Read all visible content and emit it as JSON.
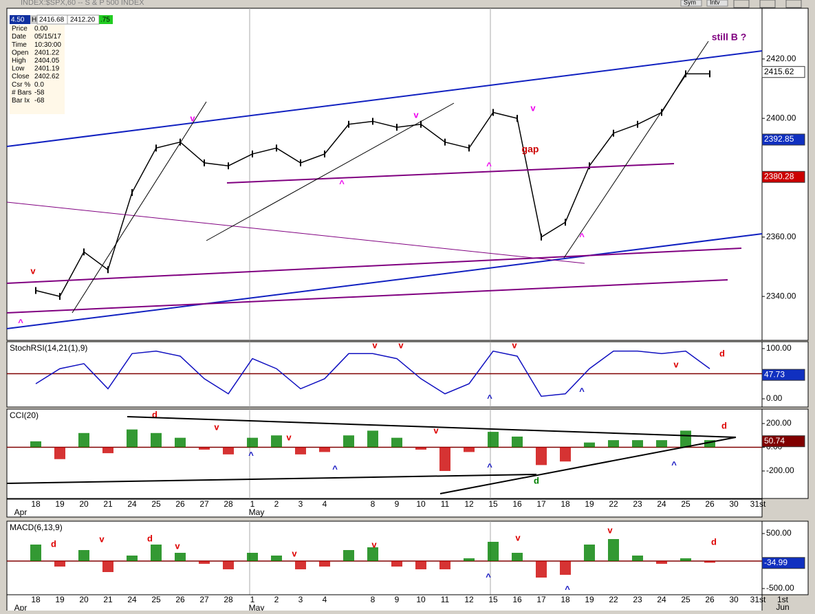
{
  "window": {
    "title": "INDEX:$SPX,60 -- S & P 500 INDEX",
    "buttons": [
      "Sym",
      "Intv"
    ]
  },
  "quote": {
    "fields": [
      "4.50",
      "H",
      "2416.68",
      "2412.20",
      ".75"
    ]
  },
  "info": {
    "rows": [
      [
        "Price",
        "0.00"
      ],
      [
        "Date",
        "05/15/17"
      ],
      [
        "Time",
        "10:30:00"
      ],
      [
        "Open",
        "2401.22"
      ],
      [
        "High",
        "2404.05"
      ],
      [
        "Low",
        "2401.19"
      ],
      [
        "Close",
        "2402.62"
      ],
      [
        "Csr %",
        "0.0"
      ],
      [
        "# Bars",
        "-58"
      ],
      [
        "Bar Ix",
        "-68"
      ]
    ]
  },
  "axis": {
    "categories": [
      "18",
      "19",
      "20",
      "21",
      "24",
      "25",
      "26",
      "27",
      "28",
      "1",
      "2",
      "3",
      "4",
      null,
      "8",
      "9",
      "10",
      "11",
      "12",
      "15",
      "16",
      "17",
      "18",
      "19",
      "22",
      "23",
      "24",
      "25",
      "26",
      "30",
      "31st"
    ],
    "months": [
      "Apr",
      "May"
    ],
    "next": [
      "1st",
      "Jun"
    ]
  },
  "chart_data": [
    {
      "type": "line",
      "color": "#000000",
      "values": [
        2342,
        2340,
        2355,
        2349,
        2375,
        2390,
        2392,
        2385,
        2384,
        2388,
        2390,
        2385,
        2388,
        2398,
        2399,
        2397,
        2398,
        2392,
        2390,
        2402,
        2400,
        2360,
        2365,
        2384,
        2395,
        2398,
        2402,
        2415,
        2415,
        null,
        null
      ],
      "ylim": [
        2325.2,
        2437.1
      ],
      "yticks": [
        {
          "value": 2420,
          "label": "2420.00"
        },
        {
          "value": 2400,
          "label": "2400.00"
        },
        {
          "value": 2380,
          "label": "2380.00"
        },
        {
          "value": 2360,
          "label": "2360.00"
        },
        {
          "value": 2340,
          "label": "2340.00"
        }
      ],
      "last_values": [
        {
          "value": 2415.62,
          "color": "#ffffff",
          "text_color": "#000000"
        },
        {
          "value": 2392.85,
          "color": "#1030c0",
          "text_color": "#ffffff"
        },
        {
          "value": 2380.28,
          "color": "#cc0000",
          "text_color": "#ffffff"
        }
      ],
      "annotations": [
        {
          "text": "v",
          "color": "#dd0000"
        },
        {
          "text": "^",
          "color": "#ee00ee"
        },
        {
          "text": "v",
          "color": "#ee00ee"
        },
        {
          "text": "v",
          "color": "#ee00ee"
        },
        {
          "text": "v",
          "color": "#ee00ee"
        },
        {
          "text": "^",
          "color": "#ee00ee"
        },
        {
          "text": "^",
          "color": "#ee00ee"
        },
        {
          "text": "^",
          "color": "#ee00ee"
        },
        {
          "text": "gap",
          "color": "#cc0000"
        },
        {
          "text": "still B ?",
          "color": "#800080"
        }
      ]
    },
    {
      "type": "line",
      "title": "StochRSI(14,21(1),9)",
      "color": "#1010c0",
      "values": [
        30,
        60,
        70,
        20,
        90,
        95,
        85,
        40,
        10,
        80,
        60,
        20,
        40,
        90,
        90,
        80,
        40,
        10,
        30,
        95,
        85,
        5,
        10,
        60,
        95,
        95,
        90,
        95,
        60,
        null,
        null
      ],
      "ylim": [
        -16.4,
        113.7
      ],
      "yticks": [
        {
          "value": 100,
          "label": "100.00"
        },
        {
          "value": 0,
          "label": "0.00"
        }
      ],
      "reference_line": 50,
      "last_values": [
        {
          "value": 47.73,
          "color": "#1030c0",
          "text_color": "#ffffff"
        }
      ],
      "annotations": [
        {
          "text": "v",
          "color": "#dd0000"
        },
        {
          "text": "v",
          "color": "#dd0000"
        },
        {
          "text": "v",
          "color": "#dd0000"
        },
        {
          "text": "v",
          "color": "#dd0000"
        },
        {
          "text": "^",
          "color": "#1010c0"
        },
        {
          "text": "^",
          "color": "#1010c0"
        },
        {
          "text": "d",
          "color": "#dd0000"
        }
      ]
    },
    {
      "type": "bar",
      "title": "CCI(20)",
      "colors": {
        "positive": "#008000",
        "negative": "#cc0000"
      },
      "values": [
        50,
        -100,
        120,
        -50,
        150,
        120,
        80,
        -20,
        -60,
        80,
        100,
        -60,
        -40,
        100,
        140,
        80,
        -20,
        -200,
        -40,
        130,
        90,
        -150,
        -120,
        40,
        60,
        60,
        60,
        140,
        60,
        null,
        null
      ],
      "ylim": [
        -431.9,
        321.7
      ],
      "yticks": [
        {
          "value": 200,
          "label": "200.00"
        },
        {
          "value": 0,
          "label": "0.00"
        },
        {
          "value": -200,
          "label": "-200.00"
        }
      ],
      "last_values": [
        {
          "value": 50.74,
          "color": "#800000",
          "text_color": "#ffffff"
        }
      ],
      "annotations": [
        {
          "text": "d",
          "color": "#dd0000"
        },
        {
          "text": "v",
          "color": "#dd0000"
        },
        {
          "text": "v",
          "color": "#dd0000"
        },
        {
          "text": "v",
          "color": "#dd0000"
        },
        {
          "text": "^",
          "color": "#1010c0"
        },
        {
          "text": "^",
          "color": "#1010c0"
        },
        {
          "text": "^",
          "color": "#1010c0"
        },
        {
          "text": "^",
          "color": "#1010c0"
        },
        {
          "text": "d",
          "color": "#008000"
        },
        {
          "text": "d",
          "color": "#dd0000"
        }
      ]
    },
    {
      "type": "bar",
      "title": "MACD(6,13,9)",
      "colors": {
        "positive": "#008000",
        "negative": "#cc0000"
      },
      "values": [
        300,
        -100,
        200,
        -200,
        100,
        300,
        150,
        -50,
        -150,
        150,
        100,
        -150,
        -100,
        200,
        250,
        -100,
        -150,
        -150,
        50,
        350,
        150,
        -300,
        -250,
        300,
        400,
        100,
        -50,
        50,
        -30,
        null,
        null
      ],
      "ylim": [
        -612.5,
        725
      ],
      "yticks": [
        {
          "value": 500,
          "label": "500.00"
        },
        {
          "value": -500,
          "label": "-500.00"
        }
      ],
      "last_values": [
        {
          "value": -34.99,
          "color": "#1030c0",
          "text_color": "#ffffff"
        }
      ],
      "annotations": [
        {
          "text": "d",
          "color": "#dd0000"
        },
        {
          "text": "v",
          "color": "#dd0000"
        },
        {
          "text": "d",
          "color": "#dd0000"
        },
        {
          "text": "v",
          "color": "#dd0000"
        },
        {
          "text": "v",
          "color": "#dd0000"
        },
        {
          "text": "v",
          "color": "#dd0000"
        },
        {
          "text": "v",
          "color": "#dd0000"
        },
        {
          "text": "v",
          "color": "#dd0000"
        },
        {
          "text": "d",
          "color": "#dd0000"
        },
        {
          "text": "^",
          "color": "#1010c0"
        },
        {
          "text": "^",
          "color": "#1010c0"
        }
      ]
    }
  ]
}
